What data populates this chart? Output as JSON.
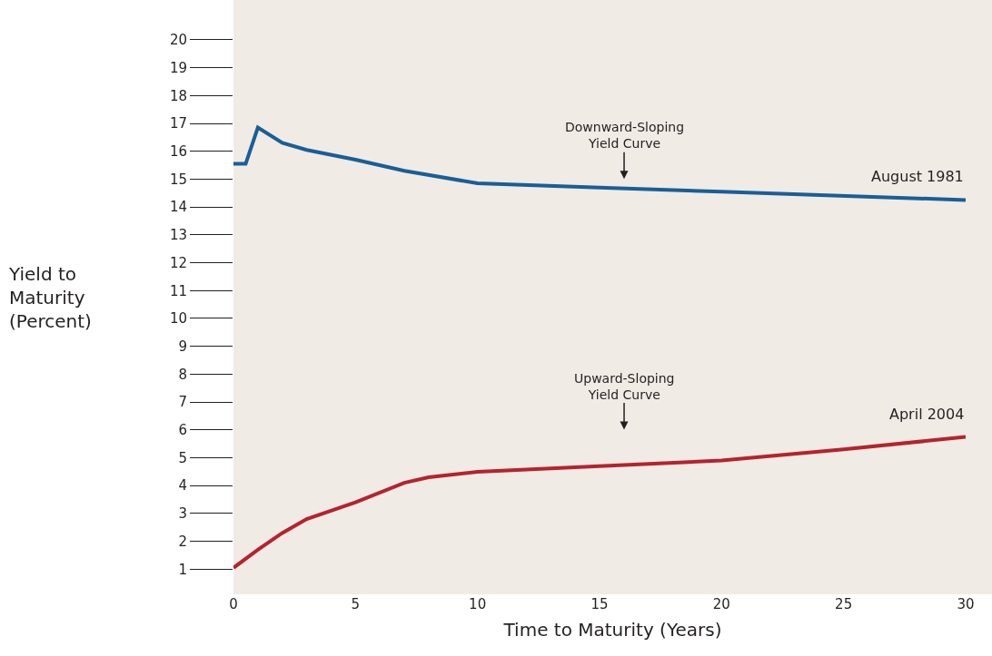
{
  "chart_data": {
    "type": "line",
    "xlabel": "Time to Maturity (Years)",
    "ylabel": "Yield to\nMaturity\n(Percent)",
    "series": [
      {
        "name": "August 1981",
        "color": "#1a5e96",
        "x": [
          0,
          0.5,
          1,
          2,
          3,
          5,
          7,
          10,
          15,
          20,
          30
        ],
        "values": [
          15.55,
          15.55,
          16.85,
          16.3,
          16.05,
          15.7,
          15.3,
          14.85,
          14.7,
          14.55,
          14.25
        ]
      },
      {
        "name": "April 2004",
        "color": "#b5232e",
        "x": [
          0,
          1,
          2,
          3,
          5,
          7,
          8,
          10,
          15,
          20,
          25,
          30
        ],
        "values": [
          1.05,
          1.7,
          2.3,
          2.8,
          3.4,
          4.1,
          4.3,
          4.5,
          4.7,
          4.9,
          5.3,
          5.75
        ]
      }
    ],
    "annotations": [
      "Downward-Sloping\nYield Curve",
      "Upward-Sloping\nYield Curve"
    ],
    "xlim": [
      0,
      31.08
    ],
    "xticks": [
      0,
      5,
      10,
      15,
      20,
      25,
      30
    ],
    "ylim": [
      0.1,
      21.43
    ],
    "yticks": [
      1,
      2,
      3,
      4,
      5,
      6,
      7,
      8,
      9,
      10,
      11,
      12,
      13,
      14,
      15,
      16,
      17,
      18,
      19,
      20
    ],
    "grid": false,
    "legend": false,
    "marker": "none",
    "line_style": "solid"
  }
}
